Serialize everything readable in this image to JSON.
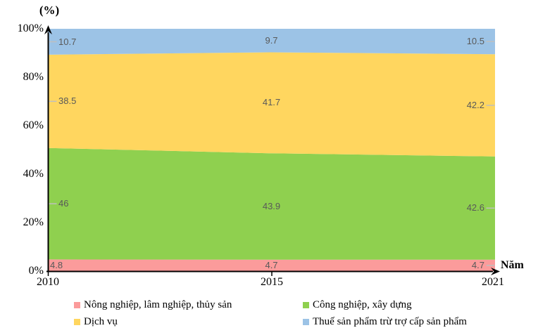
{
  "chart_data": {
    "type": "area",
    "subtype": "stacked-percent",
    "title": "",
    "xlabel": "Năm",
    "ylabel": "(%)",
    "x": [
      "2010",
      "2015",
      "2021"
    ],
    "y_tick_labels": [
      "100%",
      "80%",
      "60%",
      "40%",
      "20%",
      "0%"
    ],
    "ylim": [
      0,
      100
    ],
    "grid": false,
    "legend_position": "bottom",
    "series": [
      {
        "name": "Nông nghiệp, lâm nghiệp, thủy sản",
        "color": "#FB9B9B",
        "values": [
          4.8,
          4.7,
          4.7
        ],
        "labels": [
          "4.8",
          "4.7",
          "4.7"
        ]
      },
      {
        "name": "Công nghiệp, xây dựng",
        "color": "#8FD04F",
        "values": [
          46,
          43.9,
          42.6
        ],
        "labels": [
          "46",
          "43.9",
          "42.6"
        ]
      },
      {
        "name": "Dịch vụ",
        "color": "#FFD65F",
        "values": [
          38.5,
          41.7,
          42.2
        ],
        "labels": [
          "38.5",
          "41.7",
          "42.2"
        ]
      },
      {
        "name": "Thuế sản phẩm trừ trợ cấp sản phẩm",
        "color": "#9CC3E6",
        "values": [
          10.7,
          9.7,
          10.5
        ],
        "labels": [
          "10.7",
          "9.7",
          "10.5"
        ]
      }
    ],
    "colors": {
      "value_label_text": "#595959",
      "leader_line": "#BFBFBF",
      "axis": "#000000"
    }
  }
}
